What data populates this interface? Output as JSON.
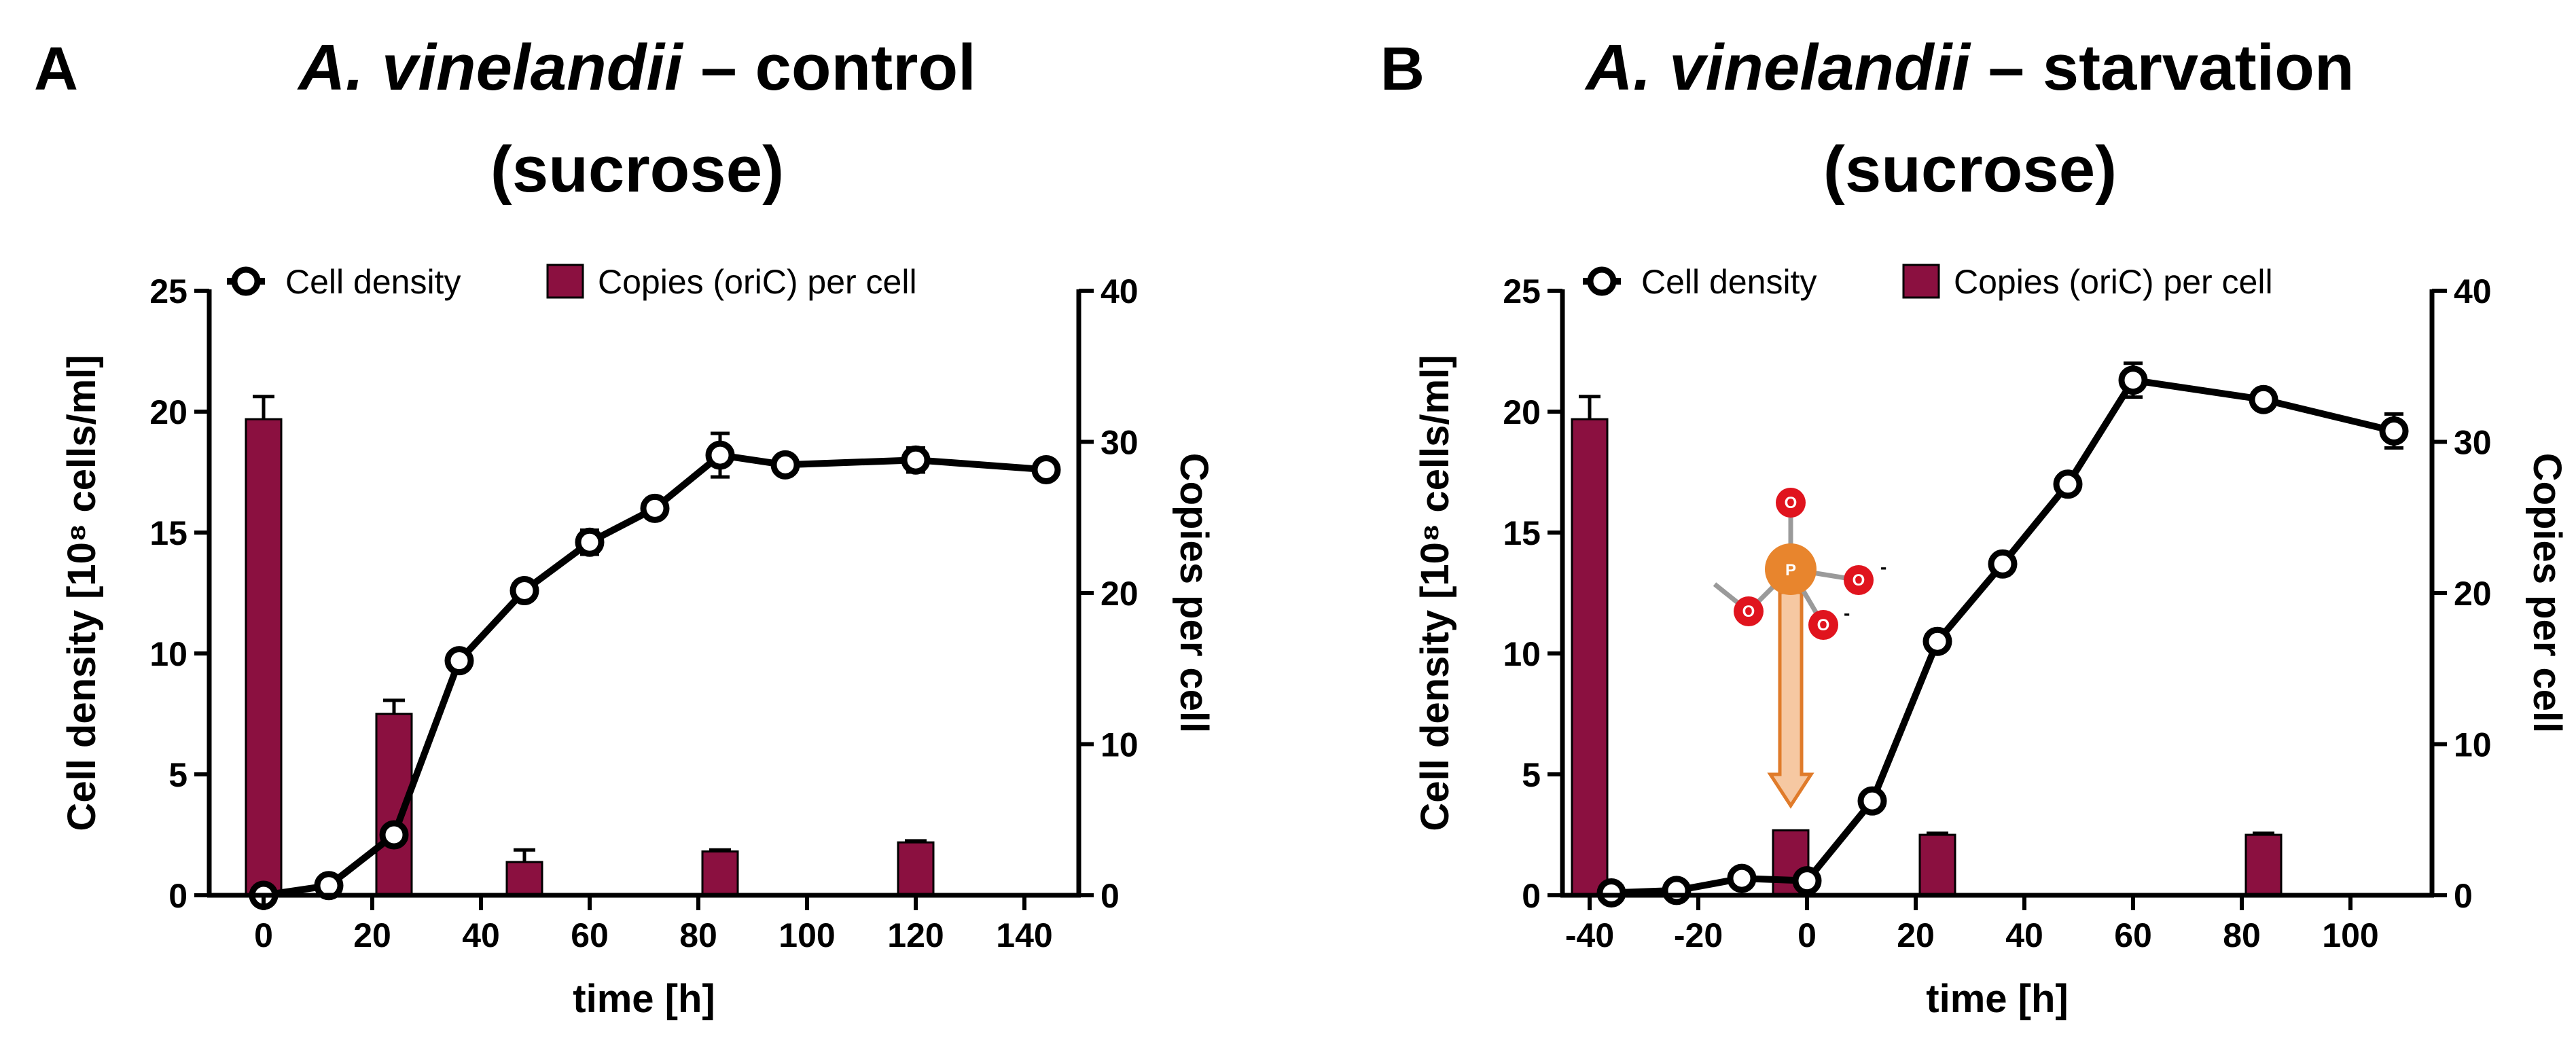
{
  "figure": {
    "bar_color": "#8b1040",
    "line_color": "#000000"
  },
  "chart_data": [
    {
      "type": "line",
      "panel_label": "A",
      "title_italic": "A. vinelandii",
      "title_rest": " – control",
      "title_line2": "(sucrose)",
      "xlabel": "time [h]",
      "ylabel_left": "Cell density [10⁸ cells/ml]",
      "ylabel_right": "Copies per cell",
      "xlim": [
        -10,
        150
      ],
      "ylim_left": [
        0,
        25
      ],
      "ylim_right": [
        0,
        40
      ],
      "x_ticks": [
        "0",
        "20",
        "40",
        "60",
        "80",
        "100",
        "120",
        "140"
      ],
      "y_ticks_left": [
        "0",
        "5",
        "10",
        "15",
        "20",
        "25"
      ],
      "y_ticks_right": [
        "0",
        "10",
        "20",
        "30",
        "40"
      ],
      "legend": {
        "line": "Cell density",
        "bar": "Copies  (oriC) per cell"
      },
      "series": [
        {
          "name": "Cell density",
          "axis": "left",
          "x": [
            0,
            12,
            24,
            36,
            48,
            60,
            72,
            84,
            96,
            120,
            144
          ],
          "y": [
            0.0,
            0.4,
            2.5,
            9.7,
            12.6,
            14.6,
            16.0,
            18.2,
            17.8,
            18.0,
            17.6
          ],
          "error": [
            0.2,
            0.2,
            0.3,
            0.3,
            0.3,
            0.5,
            0.4,
            0.9,
            0.3,
            0.5,
            0.4
          ]
        },
        {
          "name": "Copies  (oriC) per cell",
          "axis": "right",
          "type": "bar",
          "x": [
            0,
            24,
            48,
            84,
            120
          ],
          "y": [
            31.5,
            12.0,
            2.2,
            2.9,
            3.5
          ],
          "error": [
            1.5,
            0.9,
            0.8,
            0.1,
            0.1
          ]
        }
      ]
    },
    {
      "type": "line",
      "panel_label": "B",
      "title_italic": "A. vinelandii",
      "title_rest": " – starvation",
      "title_line2": "(sucrose)",
      "xlabel": "time [h]",
      "ylabel_left": "Cell density [10⁸ cells/ml]",
      "ylabel_right": "Copies per cell",
      "xlim": [
        -45,
        115
      ],
      "ylim_left": [
        0,
        25
      ],
      "ylim_right": [
        0,
        40
      ],
      "x_ticks": [
        "-40",
        "-20",
        "0",
        "20",
        "40",
        "60",
        "80",
        "100"
      ],
      "y_ticks_left": [
        "0",
        "5",
        "10",
        "15",
        "20",
        "25"
      ],
      "y_ticks_right": [
        "0",
        "10",
        "20",
        "30",
        "40"
      ],
      "legend": {
        "line": "Cell density",
        "bar": "Copies  (oriC) per cell"
      },
      "annotation": {
        "type": "phosphate-addition-arrow",
        "x": -3,
        "atoms": {
          "phosphorus": "P",
          "oxygen": "O",
          "charge": "-"
        },
        "arrow_color": "#e07b2a",
        "phosphorus_color": "#e8852d",
        "oxygen_color": "#e0141e"
      },
      "series": [
        {
          "name": "Cell density",
          "axis": "left",
          "x": [
            -36,
            -24,
            -12,
            0,
            12,
            24,
            36,
            48,
            60,
            84,
            108
          ],
          "y": [
            0.1,
            0.2,
            0.7,
            0.6,
            3.9,
            10.5,
            13.7,
            17.0,
            21.3,
            20.5,
            19.2
          ],
          "error": [
            0.1,
            0.1,
            0.1,
            0.2,
            0.2,
            0.3,
            0.3,
            0.3,
            0.7,
            0.3,
            0.7
          ]
        },
        {
          "name": "Copies  (oriC) per cell",
          "axis": "right",
          "type": "bar",
          "x": [
            -40,
            -3,
            24,
            84
          ],
          "y": [
            31.5,
            4.3,
            4.0,
            4.0
          ],
          "error": [
            1.5,
            0.0,
            0.1,
            0.1
          ]
        }
      ]
    }
  ]
}
